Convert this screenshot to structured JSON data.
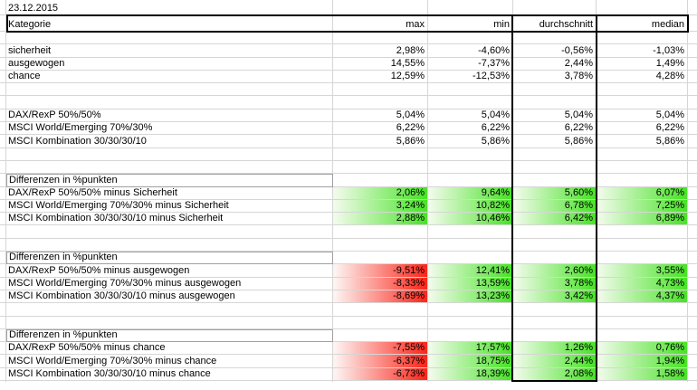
{
  "colors": {
    "gridline": "#d6d6d6",
    "section_border": "#a0a0a0",
    "border_strong": "#000000",
    "green_light": "#f1fbea",
    "green_strong": "#4ce32b",
    "red_light": "#fdf3f1",
    "red_strong": "#fb2a1e"
  },
  "column_keys": [
    "max",
    "min",
    "durchschnitt",
    "median"
  ],
  "rows": [
    {
      "type": "date",
      "label": "23.12.2015"
    },
    {
      "type": "header",
      "label": "Kategorie",
      "values": [
        "max",
        "min",
        "durchschnitt",
        "median"
      ]
    },
    {
      "type": "empty"
    },
    {
      "type": "data",
      "label": "sicherheit",
      "values": [
        "2,98%",
        "-4,60%",
        "-0,56%",
        "-1,03%"
      ]
    },
    {
      "type": "data",
      "label": "ausgewogen",
      "values": [
        "14,55%",
        "-7,37%",
        "2,44%",
        "1,49%"
      ]
    },
    {
      "type": "data",
      "label": "chance",
      "values": [
        "12,59%",
        "-12,53%",
        "3,78%",
        "4,28%"
      ]
    },
    {
      "type": "empty"
    },
    {
      "type": "empty"
    },
    {
      "type": "data",
      "label": "DAX/RexP 50%/50%",
      "values": [
        "5,04%",
        "5,04%",
        "5,04%",
        "5,04%"
      ]
    },
    {
      "type": "data",
      "label": "MSCI World/Emerging 70%/30%",
      "values": [
        "6,22%",
        "6,22%",
        "6,22%",
        "6,22%"
      ]
    },
    {
      "type": "data",
      "label": "MSCI Kombination 30/30/30/10",
      "values": [
        "5,86%",
        "5,86%",
        "5,86%",
        "5,86%"
      ]
    },
    {
      "type": "empty"
    },
    {
      "type": "empty"
    },
    {
      "type": "section",
      "label": "Differenzen in %punkten"
    },
    {
      "type": "data",
      "label": "DAX/RexP 50%/50% minus Sicherheit",
      "values": [
        "2,06%",
        "9,64%",
        "5,60%",
        "6,07%"
      ],
      "fills": [
        "g",
        "g",
        "g",
        "g"
      ]
    },
    {
      "type": "data",
      "label": "MSCI World/Emerging 70%/30% minus Sicherheit",
      "values": [
        "3,24%",
        "10,82%",
        "6,78%",
        "7,25%"
      ],
      "fills": [
        "g",
        "g",
        "g",
        "g"
      ]
    },
    {
      "type": "data",
      "label": "MSCI Kombination 30/30/30/10 minus Sicherheit",
      "values": [
        "2,88%",
        "10,46%",
        "6,42%",
        "6,89%"
      ],
      "fills": [
        "g",
        "g",
        "g",
        "g"
      ]
    },
    {
      "type": "empty"
    },
    {
      "type": "empty"
    },
    {
      "type": "section",
      "label": "Differenzen in %punkten"
    },
    {
      "type": "data",
      "label": "DAX/RexP 50%/50% minus ausgewogen",
      "values": [
        "-9,51%",
        "12,41%",
        "2,60%",
        "3,55%"
      ],
      "fills": [
        "r",
        "g",
        "g",
        "g"
      ]
    },
    {
      "type": "data",
      "label": "MSCI World/Emerging 70%/30% minus ausgewogen",
      "values": [
        "-8,33%",
        "13,59%",
        "3,78%",
        "4,73%"
      ],
      "fills": [
        "r",
        "g",
        "g",
        "g"
      ]
    },
    {
      "type": "data",
      "label": "MSCI Kombination 30/30/30/10 minus ausgewogen",
      "values": [
        "-8,69%",
        "13,23%",
        "3,42%",
        "4,37%"
      ],
      "fills": [
        "r",
        "g",
        "g",
        "g"
      ]
    },
    {
      "type": "empty"
    },
    {
      "type": "empty"
    },
    {
      "type": "section",
      "label": "Differenzen in %punkten"
    },
    {
      "type": "data",
      "label": "DAX/RexP 50%/50% minus chance",
      "values": [
        "-7,55%",
        "17,57%",
        "1,26%",
        "0,76%"
      ],
      "fills": [
        "r",
        "g",
        "g",
        "g"
      ]
    },
    {
      "type": "data",
      "label": "MSCI World/Emerging 70%/30% minus chance",
      "values": [
        "-6,37%",
        "18,75%",
        "2,44%",
        "1,94%"
      ],
      "fills": [
        "r",
        "g",
        "g",
        "g"
      ]
    },
    {
      "type": "data",
      "label": "MSCI Kombination 30/30/30/10 minus chance",
      "values": [
        "-6,73%",
        "18,39%",
        "2,08%",
        "1,58%"
      ],
      "fills": [
        "r",
        "g",
        "g",
        "g"
      ]
    }
  ]
}
